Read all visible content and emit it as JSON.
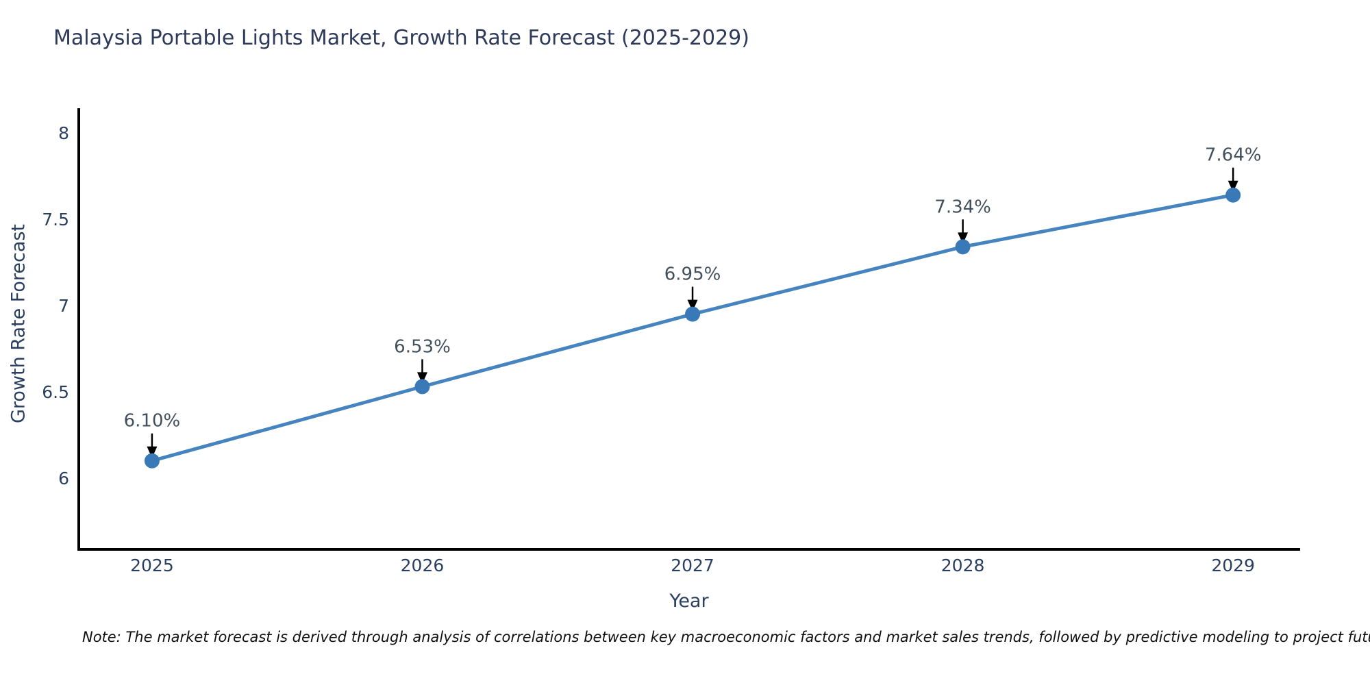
{
  "title": "Malaysia Portable Lights Market, Growth Rate Forecast (2025-2029)",
  "note": "Note: The market forecast is derived through analysis of correlations between key macroeconomic factors and market sales trends, followed by predictive modeling to project future sales",
  "chart_data": {
    "type": "line",
    "title": "Malaysia Portable Lights Market, Growth Rate Forecast (2025-2029)",
    "xlabel": "Year",
    "ylabel": "Growth Rate Forecast",
    "x": [
      2025,
      2026,
      2027,
      2028,
      2029
    ],
    "categories": [
      "2025",
      "2026",
      "2027",
      "2028",
      "2029"
    ],
    "values": [
      6.1,
      6.53,
      6.95,
      7.34,
      7.64
    ],
    "point_labels": [
      "6.10%",
      "6.53%",
      "6.95%",
      "7.34%",
      "7.64%"
    ],
    "yticks": [
      6,
      6.5,
      7,
      7.5,
      8
    ],
    "ytick_labels": [
      "6",
      "6.5",
      "7",
      "7.5",
      "8"
    ],
    "xlim": [
      2024.729,
      2029.248
    ],
    "ylim": [
      5.587,
      8.143
    ],
    "grid": false,
    "legend": "none",
    "colors": {
      "line": "#4684bf",
      "marker": "#3a79b8",
      "axis": "#000000",
      "tick_text": "#2a3f5f",
      "annotation_text": "#42505c",
      "arrow": "#000000"
    }
  }
}
